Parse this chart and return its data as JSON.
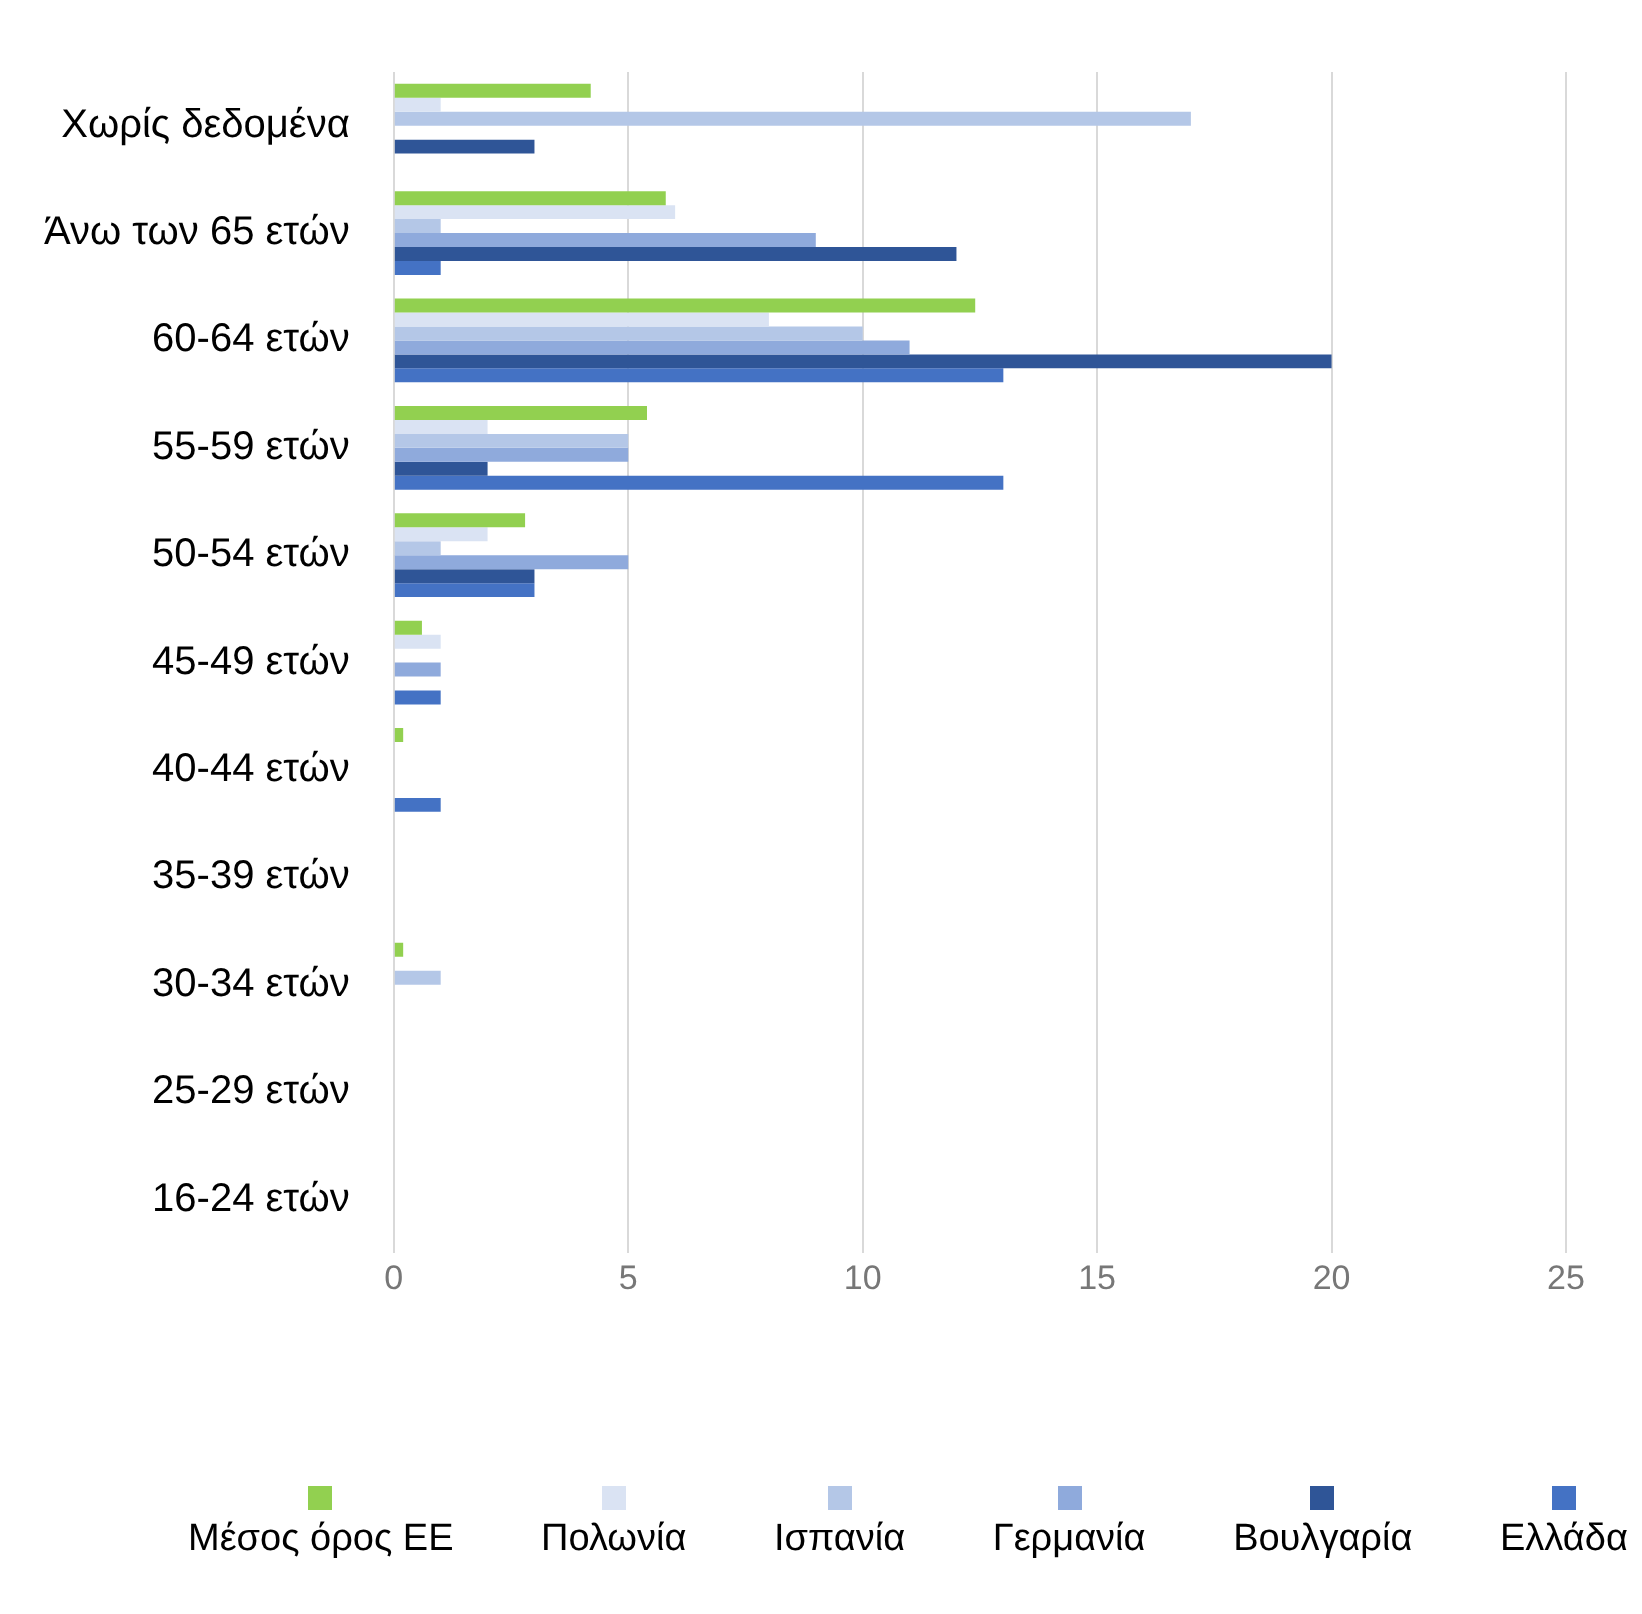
{
  "chart_data": {
    "type": "bar",
    "orientation": "horizontal",
    "categories": [
      "Χωρίς δεδομένα",
      "Άνω των 65 ετών",
      "60-64 ετών",
      "55-59 ετών",
      "50-54 ετών",
      "45-49 ετών",
      "40-44 ετών",
      "35-39 ετών",
      "30-34 ετών",
      "25-29 ετών",
      "16-24 ετών"
    ],
    "series": [
      {
        "name": "Μέσος όρος ΕΕ",
        "color": "#92d050",
        "values": [
          4.2,
          5.8,
          12.4,
          5.4,
          2.8,
          0.6,
          0.2,
          0,
          0.2,
          0,
          0
        ]
      },
      {
        "name": "Πολωνία",
        "color": "#dae3f3",
        "values": [
          1,
          6,
          8,
          2,
          2,
          1,
          0,
          0,
          0,
          0,
          0
        ]
      },
      {
        "name": "Ισπανία",
        "color": "#b4c7e7",
        "values": [
          17,
          1,
          10,
          5,
          1,
          0,
          0,
          0,
          1,
          0,
          0
        ]
      },
      {
        "name": "Γερμανία",
        "color": "#8faadc",
        "values": [
          0,
          9,
          11,
          5,
          5,
          1,
          0,
          0,
          0,
          0,
          0
        ]
      },
      {
        "name": "Βουλγαρία",
        "color": "#2f5597",
        "values": [
          3,
          12,
          20,
          2,
          3,
          0,
          0,
          0,
          0,
          0,
          0
        ]
      },
      {
        "name": "Ελλάδα",
        "color": "#4472c4",
        "values": [
          0,
          1,
          13,
          13,
          3,
          1,
          1,
          0,
          0,
          0,
          0
        ]
      }
    ],
    "xlim": [
      0,
      25
    ],
    "xticks": [
      0,
      5,
      10,
      15,
      20,
      25
    ],
    "grid": "x",
    "legend": "bottom"
  }
}
